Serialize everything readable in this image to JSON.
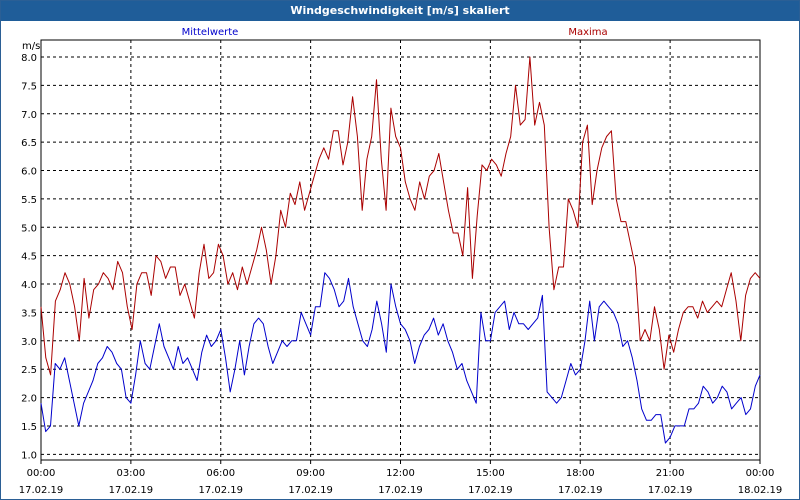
{
  "window": {
    "title": "Windgeschwindigkeit [m/s] skaliert"
  },
  "colors": {
    "titlebar": "#1f5d99",
    "mean": "#0000cc",
    "max": "#aa0000",
    "grid": "#000000"
  },
  "chart_data": {
    "type": "line",
    "title": "Windgeschwindigkeit [m/s] skaliert",
    "ylabel": "m/s",
    "xlabel": "",
    "ylim": [
      0.9,
      8.3
    ],
    "xlim": [
      0,
      24
    ],
    "grid": true,
    "y_ticks": [
      "1.0",
      "1.5",
      "2.0",
      "2.5",
      "3.0",
      "3.5",
      "4.0",
      "4.5",
      "5.0",
      "5.5",
      "6.0",
      "6.5",
      "7.0",
      "7.5",
      "8.0"
    ],
    "x_ticks": [
      {
        "time": "00:00",
        "date": "17.02.19"
      },
      {
        "time": "03:00",
        "date": "17.02.19"
      },
      {
        "time": "06:00",
        "date": "17.02.19"
      },
      {
        "time": "09:00",
        "date": "17.02.19"
      },
      {
        "time": "12:00",
        "date": "17.02.19"
      },
      {
        "time": "15:00",
        "date": "17.02.19"
      },
      {
        "time": "18:00",
        "date": "17.02.19"
      },
      {
        "time": "21:00",
        "date": "17.02.19"
      },
      {
        "time": "00:00",
        "date": "18.02.19"
      }
    ],
    "series": [
      {
        "name": "Mittelwerte",
        "color": "#0000cc",
        "values": [
          1.9,
          1.4,
          1.5,
          2.6,
          2.5,
          2.7,
          2.3,
          1.9,
          1.5,
          1.9,
          2.1,
          2.3,
          2.6,
          2.7,
          2.9,
          2.8,
          2.6,
          2.5,
          2.0,
          1.9,
          2.4,
          3.0,
          2.6,
          2.5,
          2.9,
          3.3,
          2.9,
          2.7,
          2.5,
          2.9,
          2.6,
          2.7,
          2.5,
          2.3,
          2.8,
          3.1,
          2.9,
          3.0,
          3.2,
          2.7,
          2.1,
          2.5,
          3.0,
          2.4,
          2.9,
          3.3,
          3.4,
          3.3,
          2.9,
          2.6,
          2.8,
          3.0,
          2.9,
          3.0,
          3.0,
          3.5,
          3.3,
          3.1,
          3.6,
          3.6,
          4.2,
          4.1,
          3.9,
          3.6,
          3.7,
          4.1,
          3.6,
          3.3,
          3.0,
          2.9,
          3.2,
          3.7,
          3.3,
          2.8,
          4.0,
          3.6,
          3.3,
          3.2,
          3.0,
          2.6,
          2.9,
          3.1,
          3.2,
          3.4,
          3.1,
          3.3,
          3.0,
          2.8,
          2.5,
          2.6,
          2.3,
          2.1,
          1.9,
          3.5,
          3.0,
          3.0,
          3.5,
          3.6,
          3.7,
          3.2,
          3.5,
          3.3,
          3.3,
          3.2,
          3.3,
          3.4,
          3.8,
          2.1,
          2.0,
          1.9,
          2.0,
          2.3,
          2.6,
          2.4,
          2.5,
          3.0,
          3.7,
          3.0,
          3.6,
          3.7,
          3.6,
          3.5,
          3.3,
          2.9,
          3.0,
          2.7,
          2.3,
          1.8,
          1.6,
          1.6,
          1.7,
          1.7,
          1.2,
          1.3,
          1.5,
          1.5,
          1.5,
          1.8,
          1.8,
          1.9,
          2.2,
          2.1,
          1.9,
          2.0,
          2.2,
          2.1,
          1.8,
          1.9,
          2.0,
          1.7,
          1.8,
          2.2,
          2.4
        ]
      },
      {
        "name": "Maxima",
        "color": "#aa0000",
        "values": [
          3.6,
          2.7,
          2.4,
          3.7,
          3.9,
          4.2,
          4.0,
          3.6,
          3.0,
          4.1,
          3.4,
          3.9,
          4.0,
          4.2,
          4.1,
          3.9,
          4.4,
          4.2,
          3.6,
          3.2,
          4.0,
          4.2,
          4.2,
          3.8,
          4.5,
          4.4,
          4.1,
          4.3,
          4.3,
          3.8,
          4.0,
          3.7,
          3.4,
          4.2,
          4.7,
          4.1,
          4.2,
          4.7,
          4.5,
          4.0,
          4.2,
          3.9,
          4.3,
          4.0,
          4.3,
          4.6,
          5.0,
          4.6,
          4.0,
          4.5,
          5.3,
          5.0,
          5.6,
          5.4,
          5.8,
          5.3,
          5.6,
          5.9,
          6.2,
          6.4,
          6.2,
          6.7,
          6.7,
          6.1,
          6.5,
          7.3,
          6.6,
          5.3,
          6.2,
          6.6,
          7.6,
          6.2,
          5.3,
          7.1,
          6.6,
          6.4,
          5.8,
          5.5,
          5.3,
          5.8,
          5.5,
          5.9,
          6.0,
          6.3,
          5.8,
          5.3,
          4.9,
          4.9,
          4.5,
          5.7,
          4.1,
          5.2,
          6.1,
          6.0,
          6.2,
          6.1,
          5.9,
          6.3,
          6.6,
          7.5,
          6.8,
          6.9,
          8.0,
          6.8,
          7.2,
          6.8,
          5.0,
          3.9,
          4.3,
          4.3,
          5.5,
          5.3,
          5.0,
          6.5,
          6.8,
          5.4,
          6.0,
          6.4,
          6.6,
          6.7,
          5.5,
          5.1,
          5.1,
          4.7,
          4.3,
          3.0,
          3.2,
          3.0,
          3.6,
          3.2,
          2.5,
          3.1,
          2.8,
          3.2,
          3.5,
          3.6,
          3.6,
          3.4,
          3.7,
          3.5,
          3.6,
          3.7,
          3.6,
          3.9,
          4.2,
          3.7,
          3.0,
          3.8,
          4.1,
          4.2,
          4.1
        ]
      }
    ]
  }
}
